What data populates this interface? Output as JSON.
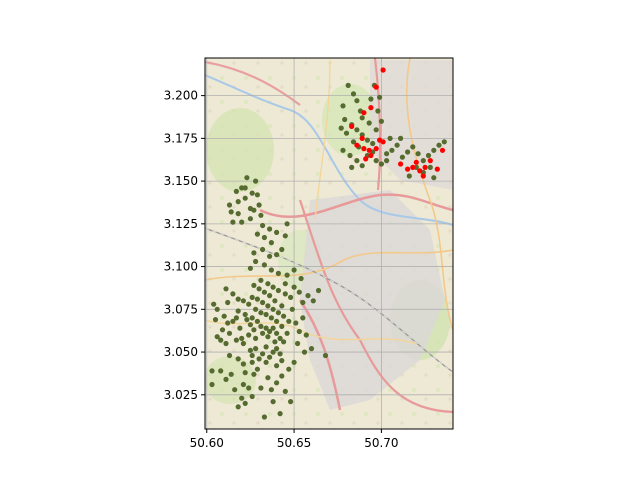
{
  "chart_data": {
    "type": "scatter",
    "title": "",
    "xlabel": "",
    "ylabel": "",
    "xlim": [
      50.599,
      50.741
    ],
    "ylim": [
      3.005,
      3.222
    ],
    "xticks": [
      "50.60",
      "50.65",
      "50.70"
    ],
    "xtick_values": [
      50.6,
      50.65,
      50.7
    ],
    "yticks": [
      "3.025",
      "3.050",
      "3.075",
      "3.100",
      "3.125",
      "3.150",
      "3.175",
      "3.200"
    ],
    "ytick_values": [
      3.025,
      3.05,
      3.075,
      3.1,
      3.125,
      3.15,
      3.175,
      3.2
    ],
    "grid": true,
    "background": "street map tiles",
    "colors": {
      "series_0": "#556b2f",
      "series_1": "#ff0000",
      "grid": "#b0b0b0",
      "axes": "#000000"
    },
    "series": [
      {
        "color": "#556b2f",
        "points": [
          [
            50.603,
            3.039
          ],
          [
            50.608,
            3.039
          ],
          [
            50.603,
            3.031
          ],
          [
            50.611,
            3.034
          ],
          [
            50.614,
            3.037
          ],
          [
            50.618,
            3.018
          ],
          [
            50.62,
            3.023
          ],
          [
            50.616,
            3.028
          ],
          [
            50.621,
            3.031
          ],
          [
            50.624,
            3.029
          ],
          [
            50.622,
            3.038
          ],
          [
            50.627,
            3.037
          ],
          [
            50.626,
            3.044
          ],
          [
            50.621,
            3.043
          ],
          [
            50.618,
            3.046
          ],
          [
            50.613,
            3.048
          ],
          [
            50.611,
            3.055
          ],
          [
            50.606,
            3.059
          ],
          [
            50.609,
            3.063
          ],
          [
            50.605,
            3.069
          ],
          [
            50.61,
            3.071
          ],
          [
            50.606,
            3.075
          ],
          [
            50.604,
            3.078
          ],
          [
            50.612,
            3.079
          ],
          [
            50.615,
            3.084
          ],
          [
            50.611,
            3.087
          ],
          [
            50.618,
            3.081
          ],
          [
            50.618,
            3.074
          ],
          [
            50.615,
            3.068
          ],
          [
            50.619,
            3.064
          ],
          [
            50.62,
            3.058
          ],
          [
            50.617,
            3.057
          ],
          [
            50.621,
            3.055
          ],
          [
            50.624,
            3.06
          ],
          [
            50.625,
            3.051
          ],
          [
            50.626,
            3.048
          ],
          [
            50.628,
            3.052
          ],
          [
            50.63,
            3.046
          ],
          [
            50.632,
            3.049
          ],
          [
            50.634,
            3.053
          ],
          [
            50.636,
            3.047
          ],
          [
            50.638,
            3.05
          ],
          [
            50.64,
            3.052
          ],
          [
            50.642,
            3.049
          ],
          [
            50.639,
            3.056
          ],
          [
            50.635,
            3.059
          ],
          [
            50.632,
            3.061
          ],
          [
            50.628,
            3.058
          ],
          [
            50.627,
            3.063
          ],
          [
            50.625,
            3.066
          ],
          [
            50.623,
            3.069
          ],
          [
            50.626,
            3.07
          ],
          [
            50.629,
            3.068
          ],
          [
            50.631,
            3.065
          ],
          [
            50.634,
            3.064
          ],
          [
            50.636,
            3.062
          ],
          [
            50.638,
            3.064
          ],
          [
            50.64,
            3.061
          ],
          [
            50.642,
            3.058
          ],
          [
            50.644,
            3.056
          ],
          [
            50.646,
            3.061
          ],
          [
            50.643,
            3.065
          ],
          [
            50.64,
            3.068
          ],
          [
            50.637,
            3.07
          ],
          [
            50.634,
            3.072
          ],
          [
            50.631,
            3.073
          ],
          [
            50.628,
            3.075
          ],
          [
            50.624,
            3.078
          ],
          [
            50.621,
            3.08
          ],
          [
            50.626,
            3.082
          ],
          [
            50.629,
            3.081
          ],
          [
            50.632,
            3.079
          ],
          [
            50.635,
            3.077
          ],
          [
            50.638,
            3.075
          ],
          [
            50.641,
            3.073
          ],
          [
            50.644,
            3.071
          ],
          [
            50.647,
            3.068
          ],
          [
            50.643,
            3.077
          ],
          [
            50.639,
            3.08
          ],
          [
            50.636,
            3.083
          ],
          [
            50.633,
            3.085
          ],
          [
            50.63,
            3.087
          ],
          [
            50.627,
            3.089
          ],
          [
            50.631,
            3.092
          ],
          [
            50.635,
            3.09
          ],
          [
            50.638,
            3.088
          ],
          [
            50.641,
            3.086
          ],
          [
            50.645,
            3.084
          ],
          [
            50.648,
            3.082
          ],
          [
            50.645,
            3.09
          ],
          [
            50.65,
            3.088
          ],
          [
            50.653,
            3.085
          ],
          [
            50.655,
            3.079
          ],
          [
            50.658,
            3.083
          ],
          [
            50.661,
            3.08
          ],
          [
            50.664,
            3.086
          ],
          [
            50.654,
            3.093
          ],
          [
            50.65,
            3.098
          ],
          [
            50.646,
            3.095
          ],
          [
            50.641,
            3.096
          ],
          [
            50.637,
            3.098
          ],
          [
            50.633,
            3.101
          ],
          [
            50.628,
            3.103
          ],
          [
            50.625,
            3.099
          ],
          [
            50.627,
            3.108
          ],
          [
            50.632,
            3.11
          ],
          [
            50.636,
            3.106
          ],
          [
            50.64,
            3.107
          ],
          [
            50.643,
            3.11
          ],
          [
            50.637,
            3.114
          ],
          [
            50.633,
            3.117
          ],
          [
            50.629,
            3.119
          ],
          [
            50.632,
            3.124
          ],
          [
            50.636,
            3.122
          ],
          [
            50.64,
            3.12
          ],
          [
            50.645,
            3.118
          ],
          [
            50.646,
            3.125
          ],
          [
            50.631,
            3.13
          ],
          [
            50.627,
            3.133
          ],
          [
            50.625,
            3.128
          ],
          [
            50.62,
            3.126
          ],
          [
            50.618,
            3.131
          ],
          [
            50.615,
            3.126
          ],
          [
            50.613,
            3.136
          ],
          [
            50.618,
            3.138
          ],
          [
            50.622,
            3.14
          ],
          [
            50.626,
            3.143
          ],
          [
            50.628,
            3.15
          ],
          [
            50.623,
            3.152
          ],
          [
            50.62,
            3.146
          ],
          [
            50.622,
            3.146
          ],
          [
            50.617,
            3.144
          ],
          [
            50.625,
            3.134
          ],
          [
            50.63,
            3.136
          ],
          [
            50.629,
            3.142
          ],
          [
            50.614,
            3.132
          ],
          [
            50.657,
            3.06
          ],
          [
            50.653,
            3.062
          ],
          [
            50.651,
            3.067
          ],
          [
            50.649,
            3.075
          ],
          [
            50.655,
            3.07
          ],
          [
            50.652,
            3.055
          ],
          [
            50.656,
            3.05
          ],
          [
            50.66,
            3.052
          ],
          [
            50.668,
            3.048
          ],
          [
            50.65,
            3.044
          ],
          [
            50.647,
            3.04
          ],
          [
            50.643,
            3.036
          ],
          [
            50.64,
            3.032
          ],
          [
            50.637,
            3.028
          ],
          [
            50.635,
            3.035
          ],
          [
            50.631,
            3.029
          ],
          [
            50.645,
            3.027
          ],
          [
            50.648,
            3.021
          ],
          [
            50.633,
            3.012
          ],
          [
            50.626,
            3.024
          ],
          [
            50.622,
            3.02
          ],
          [
            50.642,
            3.014
          ],
          [
            50.638,
            3.021
          ],
          [
            50.629,
            3.04
          ],
          [
            50.622,
            3.072
          ],
          [
            50.617,
            3.07
          ],
          [
            50.613,
            3.061
          ],
          [
            50.612,
            3.067
          ],
          [
            50.608,
            3.057
          ],
          [
            50.634,
            3.044
          ],
          [
            50.64,
            3.042
          ],
          [
            50.643,
            3.045
          ],
          [
            50.681,
            3.206
          ],
          [
            50.684,
            3.201
          ],
          [
            50.686,
            3.197
          ],
          [
            50.688,
            3.191
          ],
          [
            50.678,
            3.194
          ],
          [
            50.679,
            3.186
          ],
          [
            50.683,
            3.183
          ],
          [
            50.686,
            3.18
          ],
          [
            50.689,
            3.177
          ],
          [
            50.692,
            3.174
          ],
          [
            50.695,
            3.172
          ],
          [
            50.687,
            3.17
          ],
          [
            50.684,
            3.173
          ],
          [
            50.68,
            3.178
          ],
          [
            50.677,
            3.181
          ],
          [
            50.678,
            3.168
          ],
          [
            50.682,
            3.165
          ],
          [
            50.686,
            3.162
          ],
          [
            50.683,
            3.158
          ],
          [
            50.689,
            3.159
          ],
          [
            50.692,
            3.165
          ],
          [
            50.695,
            3.167
          ],
          [
            50.697,
            3.162
          ],
          [
            50.7,
            3.16
          ],
          [
            50.703,
            3.162
          ],
          [
            50.706,
            3.168
          ],
          [
            50.709,
            3.171
          ],
          [
            50.712,
            3.164
          ],
          [
            50.715,
            3.167
          ],
          [
            50.718,
            3.17
          ],
          [
            50.721,
            3.166
          ],
          [
            50.724,
            3.162
          ],
          [
            50.727,
            3.165
          ],
          [
            50.73,
            3.168
          ],
          [
            50.733,
            3.171
          ],
          [
            50.736,
            3.173
          ],
          [
            50.728,
            3.158
          ],
          [
            50.724,
            3.155
          ],
          [
            50.72,
            3.158
          ],
          [
            50.716,
            3.153
          ],
          [
            50.73,
            3.152
          ],
          [
            50.689,
            3.187
          ],
          [
            50.693,
            3.184
          ],
          [
            50.697,
            3.18
          ],
          [
            50.7,
            3.185
          ],
          [
            50.698,
            3.191
          ],
          [
            50.694,
            3.198
          ],
          [
            50.696,
            3.206
          ],
          [
            50.699,
            3.199
          ],
          [
            50.703,
            3.166
          ],
          [
            50.705,
            3.175
          ],
          [
            50.711,
            3.175
          ]
        ]
      },
      {
        "color": "#ff0000",
        "points": [
          [
            50.701,
            3.215
          ],
          [
            50.697,
            3.205
          ],
          [
            50.694,
            3.193
          ],
          [
            50.69,
            3.19
          ],
          [
            50.689,
            3.175
          ],
          [
            50.683,
            3.182
          ],
          [
            50.686,
            3.171
          ],
          [
            50.69,
            3.169
          ],
          [
            50.693,
            3.168
          ],
          [
            50.694,
            3.165
          ],
          [
            50.691,
            3.163
          ],
          [
            50.697,
            3.169
          ],
          [
            50.699,
            3.174
          ],
          [
            50.701,
            3.173
          ],
          [
            50.711,
            3.16
          ],
          [
            50.715,
            3.157
          ],
          [
            50.718,
            3.158
          ],
          [
            50.72,
            3.161
          ],
          [
            50.722,
            3.156
          ],
          [
            50.725,
            3.158
          ],
          [
            50.728,
            3.162
          ],
          [
            50.724,
            3.153
          ],
          [
            50.732,
            3.157
          ],
          [
            50.735,
            3.168
          ]
        ]
      }
    ]
  }
}
